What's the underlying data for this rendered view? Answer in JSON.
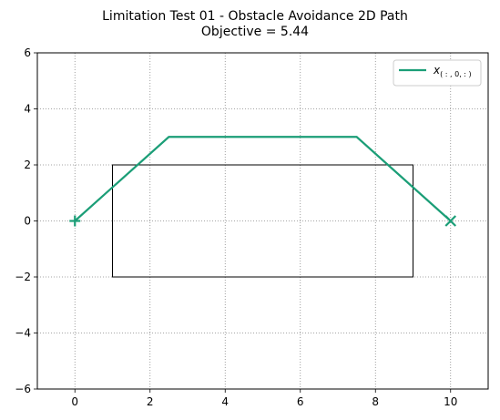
{
  "chart_data": {
    "type": "line",
    "title": "Limitation Test 01 - Obstacle Avoidance 2D Path",
    "subtitle": "Objective = 5.44",
    "xlim": [
      -1,
      11
    ],
    "ylim": [
      -6,
      6
    ],
    "xticks": [
      0,
      2,
      4,
      6,
      8,
      10
    ],
    "yticks": [
      -6,
      -4,
      -2,
      0,
      2,
      4,
      6
    ],
    "grid": true,
    "grid_style": "dotted",
    "legend_position": "upper-right",
    "series": [
      {
        "name": "x(:, 0, :)",
        "legend_main": "x",
        "legend_sub": "( : , 0, : )",
        "color": "#1b9e77",
        "x": [
          0,
          2.5,
          7.5,
          10
        ],
        "y": [
          0,
          3,
          3,
          0
        ]
      }
    ],
    "start_marker": {
      "x": 0,
      "y": 0,
      "symbol": "+",
      "color": "#1b9e77"
    },
    "end_marker": {
      "x": 10,
      "y": 0,
      "symbol": "x",
      "color": "#1b9e77"
    },
    "obstacle": {
      "x_min": 1,
      "x_max": 9,
      "y_min": -2,
      "y_max": 2,
      "color": "#000000"
    }
  }
}
